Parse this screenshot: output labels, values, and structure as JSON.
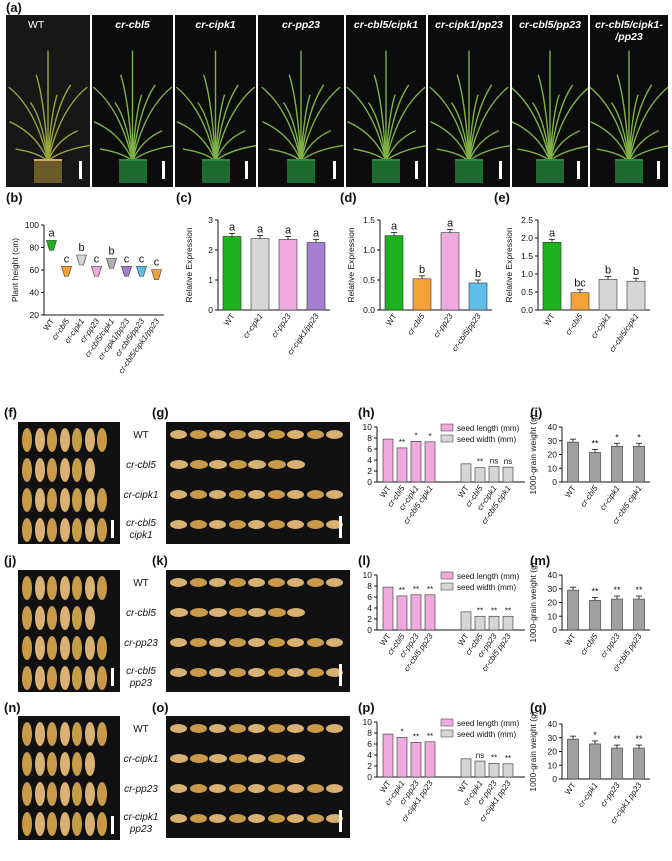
{
  "labels": {
    "a": "(a)",
    "b": "(b)",
    "c": "(c)",
    "d": "(d)",
    "e": "(e)",
    "f": "(f)",
    "g": "(g)",
    "h": "(h)",
    "i": "(i)",
    "j": "(j)",
    "k": "(k)",
    "l": "(l)",
    "m": "(m)",
    "n": "(n)",
    "o": "(o)",
    "p": "(p)",
    "q": "(q)"
  },
  "plants": [
    "WT",
    "cr-cbl5",
    "cr-cipk1",
    "cr-pp23",
    "cr-cbl5/cipk1",
    "cr-cipk1/pp23",
    "cr-cbl5/pp23",
    "cr-cbl5/cipk1-\n/pp23"
  ],
  "seed_rows": {
    "g": [
      "WT",
      "cr-cbl5",
      "cr-cipk1",
      "cr-cbl5\ncipk1"
    ],
    "k": [
      "WT",
      "cr-cbl5",
      "cr-pp23",
      "cr-cbl5\npp23"
    ],
    "o": [
      "WT",
      "cr-cipk1",
      "cr-pp23",
      "cr-cipk1\npp23"
    ]
  },
  "colors": {
    "green": "#1fb11f",
    "orange": "#f5a13a",
    "lightgray": "#d6d6d6",
    "pink": "#eeaadd",
    "purple": "#a47fcf",
    "blue": "#5fbde8",
    "gray": "#a0a0a0",
    "seed": "#c99a4a",
    "seedlight": "#d9b173"
  },
  "chart_data": [
    {
      "id": "b",
      "type": "scatter",
      "ylabel": "Plant height (cm)",
      "ylim": [
        20,
        100
      ],
      "yticks": [
        20,
        40,
        60,
        80,
        100
      ],
      "categories": [
        "WT",
        "cr-cbl5",
        "cr-cipk1",
        "cr-pp23",
        "cr-cbl5/cipk1",
        "cr-cipk1/pp23",
        "cr-cbl5/pp23",
        "cr-cbl5/cipk1/pp23"
      ],
      "values": [
        81,
        58,
        68,
        58,
        65,
        58,
        58,
        55
      ],
      "letters": [
        "a",
        "c",
        "b",
        "c",
        "b",
        "c",
        "c",
        "c"
      ],
      "colors": [
        "#1fb11f",
        "#f5a13a",
        "#d6d6d6",
        "#eeaadd",
        "#b0b0b0",
        "#a47fcf",
        "#5fbde8",
        "#f5a13a"
      ]
    },
    {
      "id": "c",
      "type": "bar",
      "ylabel": "Relative Expression",
      "ylim": [
        0,
        3
      ],
      "yticks": [
        0,
        1,
        2,
        3
      ],
      "categories": [
        "WT",
        "cr-cipk1",
        "cr-pp23",
        "cr-cipk1/pp23"
      ],
      "values": [
        2.45,
        2.38,
        2.35,
        2.25
      ],
      "letters": [
        "a",
        "a",
        "a",
        "a"
      ],
      "colors": [
        "#1fb11f",
        "#d6d6d6",
        "#eeaadd",
        "#a47fcf"
      ]
    },
    {
      "id": "d",
      "type": "bar",
      "ylabel": "Relative Expression",
      "ylim": [
        0,
        1.5
      ],
      "yticks": [
        0.0,
        0.5,
        1.0,
        1.5
      ],
      "categories": [
        "WT",
        "cr-cbl5",
        "cr-pp23",
        "cr-cbl5/pp23"
      ],
      "values": [
        1.24,
        0.52,
        1.29,
        0.45
      ],
      "letters": [
        "a",
        "b",
        "a",
        "b"
      ],
      "colors": [
        "#1fb11f",
        "#f5a13a",
        "#eeaadd",
        "#5fbde8"
      ]
    },
    {
      "id": "e",
      "type": "bar",
      "ylabel": "Relative Expression",
      "ylim": [
        0,
        2.5
      ],
      "yticks": [
        0.0,
        0.5,
        1.0,
        1.5,
        2.0,
        2.5
      ],
      "categories": [
        "WT",
        "cr-cbl5",
        "cr-cipk1",
        "cr-cbl5/cipk1"
      ],
      "values": [
        1.88,
        0.48,
        0.85,
        0.8
      ],
      "letters": [
        "a",
        "bc",
        "b",
        "b"
      ],
      "colors": [
        "#1fb11f",
        "#f5a13a",
        "#d6d6d6",
        "#d6d6d6"
      ]
    },
    {
      "id": "h",
      "type": "bar",
      "ylim": [
        0,
        10
      ],
      "yticks": [
        0,
        2,
        4,
        6,
        8,
        10
      ],
      "categories": [
        "WT",
        "cr-cbl5",
        "cr-cipk1",
        "cr-cbl5 cipk1"
      ],
      "series": [
        {
          "name": "seed length (mm)",
          "values": [
            7.8,
            6.2,
            7.4,
            7.3
          ],
          "marks": [
            "",
            "**",
            "*",
            "*"
          ],
          "color": "#eeaadd"
        },
        {
          "name": "seed width (mm)",
          "values": [
            3.3,
            2.6,
            2.8,
            2.7
          ],
          "marks": [
            "",
            "**",
            "ns",
            "ns"
          ],
          "color": "#d6d6d6"
        }
      ]
    },
    {
      "id": "i",
      "type": "bar",
      "ylabel": "1000-grain weight (g)",
      "ylim": [
        0,
        40
      ],
      "yticks": [
        0,
        10,
        20,
        30,
        40
      ],
      "categories": [
        "WT",
        "cr-cbl5",
        "cr-cipk1",
        "cr-cbl5 cipk1"
      ],
      "values": [
        29,
        21.5,
        26,
        26
      ],
      "marks": [
        "",
        "**",
        "*",
        "*"
      ],
      "colors": [
        "#a0a0a0"
      ]
    },
    {
      "id": "l",
      "type": "bar",
      "ylim": [
        0,
        10
      ],
      "yticks": [
        0,
        2,
        4,
        6,
        8,
        10
      ],
      "categories": [
        "WT",
        "cr-cbl5",
        "cr-pp23",
        "cr-cbl5 pp23"
      ],
      "series": [
        {
          "name": "seed length (mm)",
          "values": [
            7.8,
            6.2,
            6.4,
            6.4
          ],
          "marks": [
            "",
            "**",
            "**",
            "**"
          ],
          "color": "#eeaadd"
        },
        {
          "name": "seed width (mm)",
          "values": [
            3.3,
            2.5,
            2.5,
            2.5
          ],
          "marks": [
            "",
            "**",
            "**",
            "**"
          ],
          "color": "#d6d6d6"
        }
      ]
    },
    {
      "id": "m",
      "type": "bar",
      "ylabel": "1000-grain weight (g)",
      "ylim": [
        0,
        40
      ],
      "yticks": [
        0,
        10,
        20,
        30,
        40
      ],
      "categories": [
        "WT",
        "cr-cbl5",
        "cr-pp23",
        "cr-cbl5 pp23"
      ],
      "values": [
        29,
        21.5,
        22.5,
        22.5
      ],
      "marks": [
        "",
        "**",
        "**",
        "**"
      ],
      "colors": [
        "#a0a0a0"
      ]
    },
    {
      "id": "p",
      "type": "bar",
      "ylim": [
        0,
        10
      ],
      "yticks": [
        0,
        2,
        4,
        6,
        8,
        10
      ],
      "categories": [
        "WT",
        "cr-cipk1",
        "cr-pp23",
        "cr-cipk1 pp23"
      ],
      "series": [
        {
          "name": "seed length (mm)",
          "values": [
            7.8,
            7.2,
            6.3,
            6.4
          ],
          "marks": [
            "",
            "*",
            "**",
            "**"
          ],
          "color": "#eeaadd"
        },
        {
          "name": "seed width (mm)",
          "values": [
            3.3,
            2.9,
            2.5,
            2.4
          ],
          "marks": [
            "",
            "ns",
            "**",
            "**"
          ],
          "color": "#d6d6d6"
        }
      ]
    },
    {
      "id": "q",
      "type": "bar",
      "ylabel": "1000-grain weight (g)",
      "ylim": [
        0,
        40
      ],
      "yticks": [
        0,
        10,
        20,
        30,
        40
      ],
      "categories": [
        "WT",
        "cr-cipk1",
        "cr-pp23",
        "cr-cipk1 pp23"
      ],
      "values": [
        29,
        25.5,
        22.5,
        22.5
      ],
      "marks": [
        "",
        "*",
        "**",
        "**"
      ],
      "colors": [
        "#a0a0a0"
      ]
    }
  ]
}
